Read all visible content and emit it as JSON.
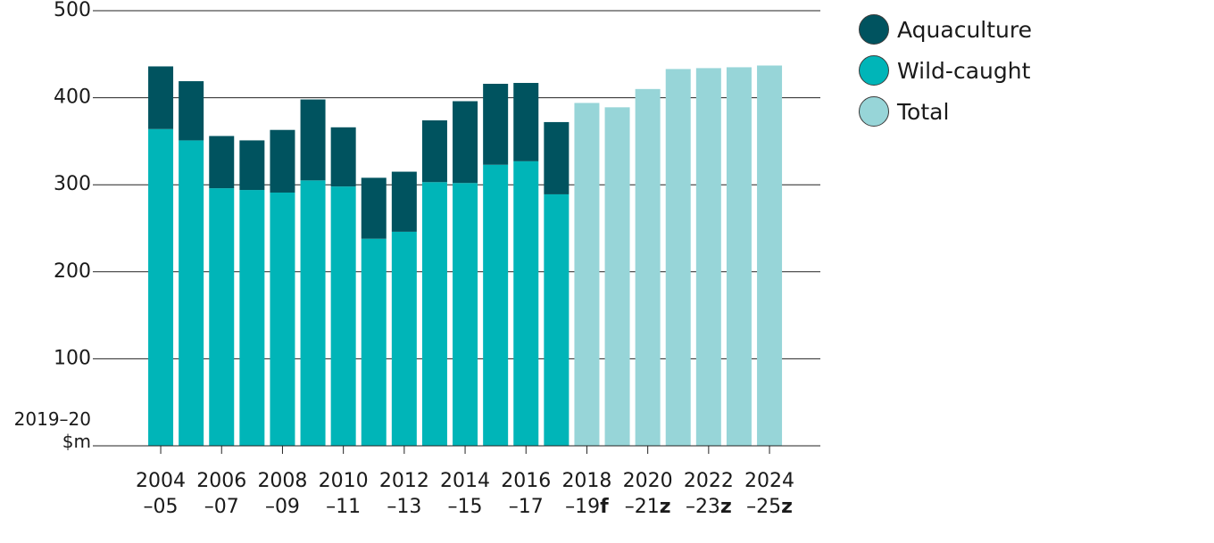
{
  "chart_data": {
    "type": "bar",
    "stacked": true,
    "title": "",
    "ylabel_lines": [
      "2019–20",
      "$m"
    ],
    "ylim": [
      0,
      500
    ],
    "yticks": [
      100,
      200,
      300,
      400,
      500
    ],
    "grid": true,
    "legend_placement": "top-right",
    "categories": [
      "2004–05",
      "2005–06",
      "2006–07",
      "2007–08",
      "2008–09",
      "2009–10",
      "2010–11",
      "2011–12",
      "2012–13",
      "2013–14",
      "2014–15",
      "2015–16",
      "2016–17",
      "2017–18",
      "2018–19f",
      "2019–20",
      "2020–21z",
      "2021–22",
      "2022–23z",
      "2023–24",
      "2024–25z"
    ],
    "x_tick_labels": [
      {
        "category_index": 0,
        "line1": "2004",
        "line2": "–05",
        "suffix": ""
      },
      {
        "category_index": 2,
        "line1": "2006",
        "line2": "–07",
        "suffix": ""
      },
      {
        "category_index": 4,
        "line1": "2008",
        "line2": "–09",
        "suffix": ""
      },
      {
        "category_index": 6,
        "line1": "2010",
        "line2": "–11",
        "suffix": ""
      },
      {
        "category_index": 8,
        "line1": "2012",
        "line2": "–13",
        "suffix": ""
      },
      {
        "category_index": 10,
        "line1": "2014",
        "line2": "–15",
        "suffix": ""
      },
      {
        "category_index": 12,
        "line1": "2016",
        "line2": "–17",
        "suffix": ""
      },
      {
        "category_index": 14,
        "line1": "2018",
        "line2": "–19",
        "suffix": "f"
      },
      {
        "category_index": 16,
        "line1": "2020",
        "line2": "–21",
        "suffix": "z"
      },
      {
        "category_index": 18,
        "line1": "2022",
        "line2": "–23",
        "suffix": "z"
      },
      {
        "category_index": 20,
        "line1": "2024",
        "line2": "–25",
        "suffix": "z"
      }
    ],
    "series": [
      {
        "name": "Wild-caught",
        "color": "#00b5b8",
        "values": [
          364,
          351,
          296,
          294,
          291,
          305,
          298,
          238,
          246,
          303,
          302,
          323,
          327,
          289,
          null,
          null,
          null,
          null,
          null,
          null,
          null
        ]
      },
      {
        "name": "Aquaculture",
        "color": "#00535f",
        "values": [
          72,
          68,
          60,
          57,
          72,
          93,
          68,
          70,
          69,
          71,
          94,
          93,
          90,
          83,
          null,
          null,
          null,
          null,
          null,
          null,
          null
        ]
      },
      {
        "name": "Total",
        "color": "#97d5d8",
        "values": [
          null,
          null,
          null,
          null,
          null,
          null,
          null,
          null,
          null,
          null,
          null,
          null,
          null,
          null,
          394,
          389,
          410,
          433,
          434,
          435,
          437
        ]
      }
    ]
  },
  "legend": {
    "items": [
      {
        "label": "Aquaculture",
        "color": "#00535f"
      },
      {
        "label": "Wild-caught",
        "color": "#00b5b8"
      },
      {
        "label": "Total",
        "color": "#97d5d8"
      }
    ]
  }
}
